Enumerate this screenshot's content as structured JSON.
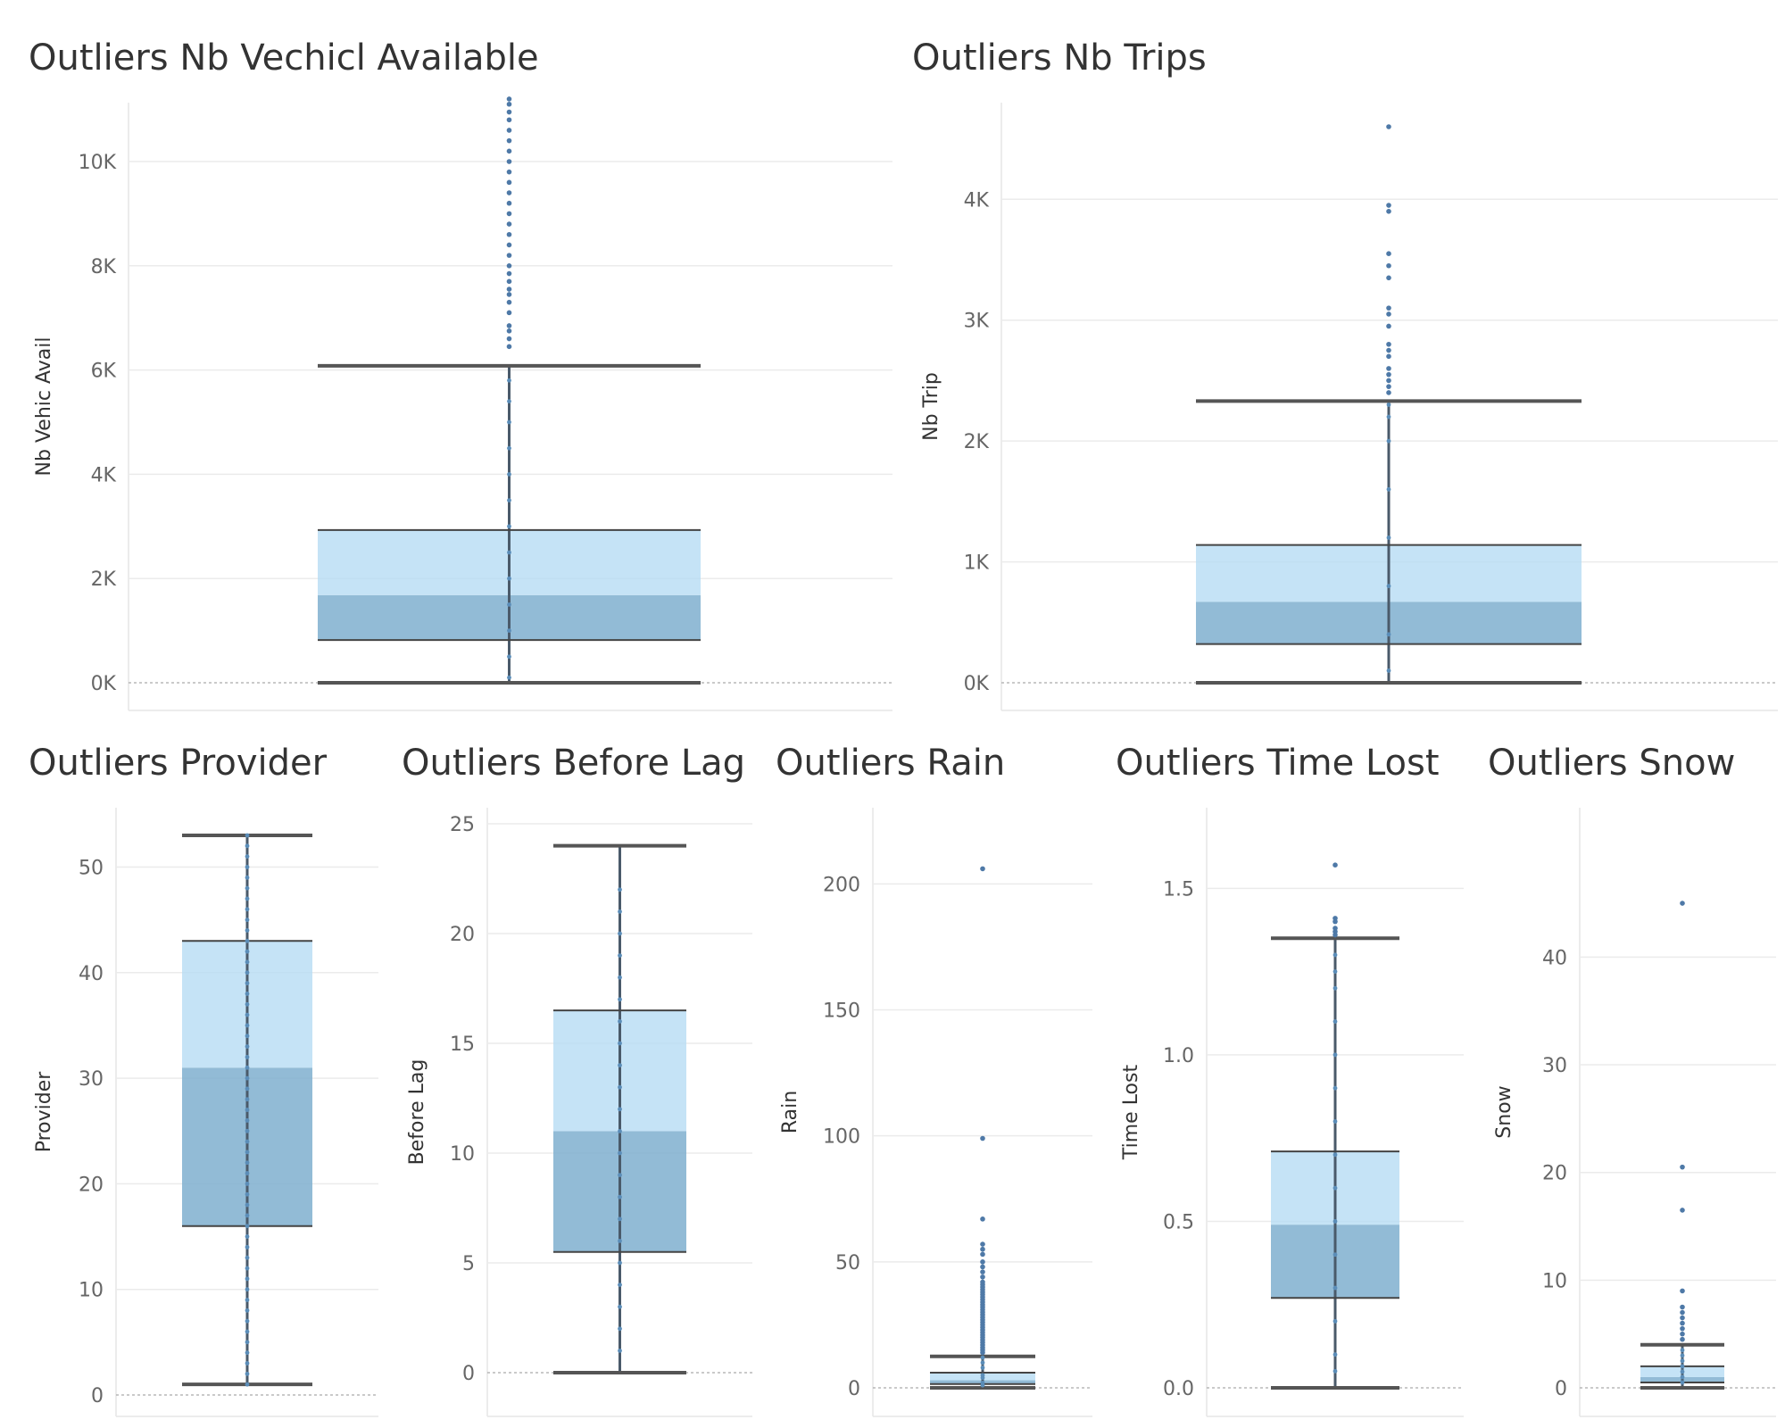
{
  "chart_data": [
    {
      "type": "box",
      "title": "Outliers Nb Vechicl Available",
      "ylabel": "Nb Vehic Avail",
      "ylim": [
        0,
        11250
      ],
      "yticks": [
        0,
        2000,
        4000,
        6000,
        8000,
        10000
      ],
      "ytick_labels": [
        "0K",
        "2K",
        "4K",
        "6K",
        "8K",
        "10K"
      ],
      "box": {
        "whisker_low": 0,
        "q1": 820,
        "median": 1680,
        "q3": 2930,
        "whisker_high": 6080
      },
      "outliers": [
        6450,
        6600,
        6750,
        6850,
        7100,
        7300,
        7450,
        7550,
        7700,
        7850,
        8000,
        8200,
        8400,
        8600,
        8800,
        9000,
        9200,
        9400,
        9600,
        9800,
        10000,
        10200,
        10400,
        10600,
        10800,
        10950,
        11100,
        11200
      ],
      "points_inside": [
        100,
        500,
        1000,
        1500,
        2000,
        2500,
        3000,
        3500,
        4000,
        4500,
        5000,
        5400,
        5800
      ]
    },
    {
      "type": "box",
      "title": "Outliers Nb Trips",
      "ylabel": "Nb Trip",
      "ylim": [
        0,
        4600
      ],
      "yticks": [
        0,
        1000,
        2000,
        3000,
        4000
      ],
      "ytick_labels": [
        "0K",
        "1K",
        "2K",
        "3K",
        "4K"
      ],
      "box": {
        "whisker_low": 0,
        "q1": 320,
        "median": 670,
        "q3": 1140,
        "whisker_high": 2330
      },
      "outliers": [
        2400,
        2450,
        2500,
        2550,
        2600,
        2700,
        2750,
        2800,
        2950,
        3050,
        3100,
        3350,
        3450,
        3550,
        3900,
        3950,
        4600
      ],
      "points_inside": [
        100,
        400,
        800,
        1200,
        1600,
        2000,
        2200,
        2300
      ]
    },
    {
      "type": "box",
      "title": "Outliers Provider",
      "ylabel": "Provider",
      "ylim": [
        0,
        53
      ],
      "yticks": [
        0,
        10,
        20,
        30,
        40,
        50
      ],
      "ytick_labels": [
        "0",
        "10",
        "20",
        "30",
        "40",
        "50"
      ],
      "box": {
        "whisker_low": 1,
        "q1": 16,
        "median": 31,
        "q3": 43,
        "whisker_high": 53
      },
      "outliers": [],
      "points_inside": [
        1,
        2,
        3,
        4,
        5,
        6,
        7,
        8,
        9,
        10,
        11,
        12,
        13,
        14,
        15,
        16,
        17,
        18,
        19,
        20,
        21,
        22,
        23,
        24,
        25,
        26,
        27,
        28,
        29,
        30,
        31,
        32,
        33,
        34,
        35,
        36,
        37,
        38,
        39,
        40,
        41,
        42,
        43,
        44,
        45,
        46,
        47,
        48,
        49,
        50,
        51,
        52,
        53
      ]
    },
    {
      "type": "box",
      "title": "Outliers Before Lag",
      "ylabel": "Before Lag",
      "ylim": [
        0,
        25
      ],
      "yticks": [
        0,
        5,
        10,
        15,
        20,
        25
      ],
      "ytick_labels": [
        "0",
        "5",
        "10",
        "15",
        "20",
        "25"
      ],
      "box": {
        "whisker_low": 0,
        "q1": 5.5,
        "median": 11,
        "q3": 16.5,
        "whisker_high": 24
      },
      "outliers": [],
      "points_inside": [
        1,
        2,
        3,
        4,
        5,
        6,
        7,
        8,
        9,
        10,
        11,
        12,
        13,
        14,
        15,
        16,
        17,
        18,
        19,
        20,
        21,
        22
      ]
    },
    {
      "type": "box",
      "title": "Outliers Rain",
      "ylabel": "Rain",
      "ylim": [
        0,
        215
      ],
      "yticks": [
        0,
        50,
        100,
        150,
        200
      ],
      "ytick_labels": [
        "0",
        "50",
        "100",
        "150",
        "200"
      ],
      "box": {
        "whisker_low": 0,
        "q1": 1.5,
        "median": 3,
        "q3": 6,
        "whisker_high": 12.5
      },
      "outliers": [
        14,
        15,
        16,
        17,
        18,
        19,
        20,
        21,
        22,
        23,
        24,
        25,
        26,
        27,
        28,
        29,
        30,
        31,
        32,
        33,
        34,
        35,
        36,
        37,
        38,
        39,
        40,
        41,
        42,
        44,
        46,
        48,
        50,
        53,
        55,
        57,
        67,
        99,
        206
      ],
      "points_inside": [
        1,
        2,
        4,
        5,
        8,
        10,
        12
      ]
    },
    {
      "type": "box",
      "title": "Outliers Time Lost",
      "ylabel": "Time Lost",
      "ylim": [
        0,
        1.6
      ],
      "yticks": [
        0,
        0.5,
        1.0,
        1.5
      ],
      "ytick_labels": [
        "0.0",
        "0.5",
        "1.0",
        "1.5"
      ],
      "box": {
        "whisker_low": 0,
        "q1": 0.27,
        "median": 0.49,
        "q3": 0.71,
        "whisker_high": 1.35
      },
      "outliers": [
        1.36,
        1.37,
        1.38,
        1.4,
        1.41,
        1.57
      ],
      "points_inside": [
        0.05,
        0.1,
        0.2,
        0.3,
        0.4,
        0.5,
        0.6,
        0.7,
        0.8,
        0.9,
        1.0,
        1.1,
        1.2,
        1.25,
        1.3
      ]
    },
    {
      "type": "box",
      "title": "Outliers Snow",
      "ylabel": "Snow",
      "ylim": [
        0,
        46
      ],
      "yticks": [
        0,
        10,
        20,
        30,
        40
      ],
      "ytick_labels": [
        "0",
        "10",
        "20",
        "30",
        "40"
      ],
      "box": {
        "whisker_low": 0,
        "q1": 0.5,
        "median": 1,
        "q3": 2,
        "whisker_high": 4
      },
      "outliers": [
        4.5,
        5,
        5.5,
        6,
        6.5,
        7,
        7.5,
        9,
        16.5,
        20.5,
        45
      ],
      "points_inside": [
        0.5,
        1,
        1.5,
        2,
        2.5,
        3,
        3.5
      ]
    }
  ]
}
